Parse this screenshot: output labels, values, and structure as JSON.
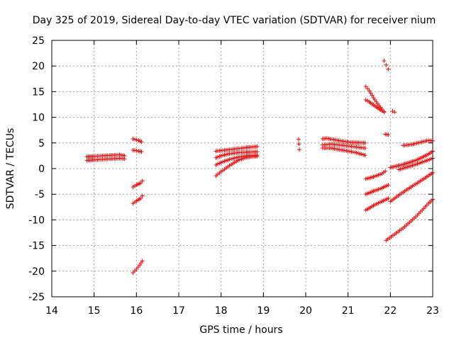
{
  "chart_data": {
    "type": "scatter",
    "title": "Day 325 of 2019, Sidereal Day-to-day VTEC variation (SDTVAR) for receiver nium",
    "xlabel": "GPS time / hours",
    "ylabel": "SDTVAR / TECUs",
    "xlim": [
      14,
      23
    ],
    "ylim": [
      -25,
      25
    ],
    "xticks": [
      "14",
      "15",
      "16",
      "17",
      "18",
      "19",
      "20",
      "21",
      "22",
      "23"
    ],
    "yticks": [
      "-25",
      "-20",
      "-15",
      "-10",
      "-5",
      "0",
      "5",
      "10",
      "15",
      "20",
      "25"
    ],
    "grid": true,
    "marker": "+",
    "color": "#ff0000",
    "series": [
      {
        "name": "s1",
        "x": [
          14.83,
          15.0,
          15.2,
          15.4,
          15.6,
          15.72
        ],
        "y": [
          1.6,
          1.7,
          1.8,
          1.9,
          2.0,
          1.9
        ]
      },
      {
        "name": "s2",
        "x": [
          14.83,
          15.0,
          15.2,
          15.4,
          15.6,
          15.72
        ],
        "y": [
          2.3,
          2.4,
          2.5,
          2.6,
          2.7,
          2.5
        ]
      },
      {
        "name": "s3",
        "x": [
          15.92,
          16.0,
          16.05,
          16.12
        ],
        "y": [
          5.8,
          5.6,
          5.5,
          5.2
        ]
      },
      {
        "name": "s4",
        "x": [
          15.92,
          16.0,
          16.05,
          16.12
        ],
        "y": [
          3.6,
          3.5,
          3.4,
          3.3
        ]
      },
      {
        "name": "s5",
        "x": [
          15.92,
          16.0,
          16.1,
          16.14
        ],
        "y": [
          -3.6,
          -3.2,
          -2.8,
          -2.4
        ]
      },
      {
        "name": "s6",
        "x": [
          15.92,
          16.0,
          16.1,
          16.14
        ],
        "y": [
          -6.8,
          -6.3,
          -5.8,
          -5.3
        ]
      },
      {
        "name": "s7",
        "x": [
          15.92,
          16.0,
          16.08,
          16.14
        ],
        "y": [
          -20.3,
          -19.6,
          -18.8,
          -18.0
        ]
      },
      {
        "name": "s8",
        "x": [
          17.88,
          18.0,
          18.2,
          18.4,
          18.6,
          18.85
        ],
        "y": [
          -1.4,
          -0.6,
          0.6,
          1.6,
          2.2,
          2.4
        ]
      },
      {
        "name": "s9",
        "x": [
          17.88,
          18.0,
          18.2,
          18.4,
          18.6,
          18.85
        ],
        "y": [
          0.7,
          1.2,
          1.8,
          2.2,
          2.5,
          2.6
        ]
      },
      {
        "name": "s10",
        "x": [
          17.88,
          18.0,
          18.2,
          18.4,
          18.6,
          18.85
        ],
        "y": [
          2.1,
          2.5,
          2.9,
          3.1,
          3.2,
          3.3
        ]
      },
      {
        "name": "s11",
        "x": [
          17.88,
          18.0,
          18.2,
          18.4,
          18.6,
          18.85
        ],
        "y": [
          3.4,
          3.5,
          3.7,
          3.9,
          4.1,
          4.3
        ]
      },
      {
        "name": "s12",
        "x": [
          19.83,
          19.84,
          19.85
        ],
        "y": [
          5.7,
          4.8,
          3.7
        ]
      },
      {
        "name": "s13",
        "x": [
          20.4,
          20.5,
          20.7,
          20.9,
          21.1,
          21.4
        ],
        "y": [
          5.8,
          5.9,
          5.6,
          5.3,
          5.1,
          5.0
        ]
      },
      {
        "name": "s14",
        "x": [
          20.4,
          20.6,
          20.8,
          21.0,
          21.2,
          21.4
        ],
        "y": [
          4.6,
          4.8,
          4.6,
          4.4,
          4.2,
          4.0
        ]
      },
      {
        "name": "s15",
        "x": [
          20.4,
          20.6,
          20.8,
          21.0,
          21.2,
          21.4
        ],
        "y": [
          4.0,
          4.0,
          3.7,
          3.4,
          3.1,
          2.6
        ]
      },
      {
        "name": "s16",
        "x": [
          21.42,
          21.5,
          21.6,
          21.7,
          21.8,
          21.85
        ],
        "y": [
          16.0,
          15.2,
          13.8,
          12.6,
          11.6,
          11.1
        ]
      },
      {
        "name": "s17",
        "x": [
          21.42,
          21.5,
          21.6,
          21.7,
          21.8,
          21.85
        ],
        "y": [
          13.4,
          13.0,
          12.4,
          11.8,
          11.3,
          11.0
        ]
      },
      {
        "name": "s18",
        "x": [
          21.85,
          21.9,
          21.95
        ],
        "y": [
          21.0,
          20.2,
          19.4
        ]
      },
      {
        "name": "s19",
        "x": [
          22.05,
          22.1
        ],
        "y": [
          11.2,
          11.0
        ]
      },
      {
        "name": "s20",
        "x": [
          21.88,
          21.95
        ],
        "y": [
          6.7,
          6.6
        ]
      },
      {
        "name": "s21",
        "x": [
          21.42,
          21.6,
          21.8,
          21.88
        ],
        "y": [
          -2.0,
          -1.6,
          -1.0,
          -0.5
        ]
      },
      {
        "name": "s22",
        "x": [
          21.42,
          21.6,
          21.8,
          21.95
        ],
        "y": [
          -5.0,
          -4.4,
          -3.8,
          -3.2
        ]
      },
      {
        "name": "s23",
        "x": [
          21.42,
          21.6,
          21.8,
          21.95
        ],
        "y": [
          -8.1,
          -7.2,
          -6.4,
          -5.8
        ]
      },
      {
        "name": "s24",
        "x": [
          22.3,
          22.5,
          22.7,
          22.9,
          23.0
        ],
        "y": [
          4.5,
          4.7,
          5.1,
          5.5,
          5.4
        ]
      },
      {
        "name": "s25",
        "x": [
          22.0,
          22.3,
          22.6,
          22.9,
          23.0
        ],
        "y": [
          0.2,
          0.8,
          1.6,
          2.8,
          3.4
        ]
      },
      {
        "name": "s26",
        "x": [
          22.2,
          22.4,
          22.6,
          22.8,
          23.0
        ],
        "y": [
          -0.2,
          0.3,
          0.8,
          1.4,
          2.0
        ]
      },
      {
        "name": "s27",
        "x": [
          22.0,
          22.3,
          22.6,
          22.9,
          23.0
        ],
        "y": [
          -6.4,
          -4.6,
          -3.0,
          -1.4,
          -0.8
        ]
      },
      {
        "name": "s28",
        "x": [
          21.9,
          22.1,
          22.3,
          22.6,
          22.9,
          23.0
        ],
        "y": [
          -14.0,
          -12.8,
          -11.6,
          -9.4,
          -6.8,
          -6.0
        ]
      }
    ]
  }
}
